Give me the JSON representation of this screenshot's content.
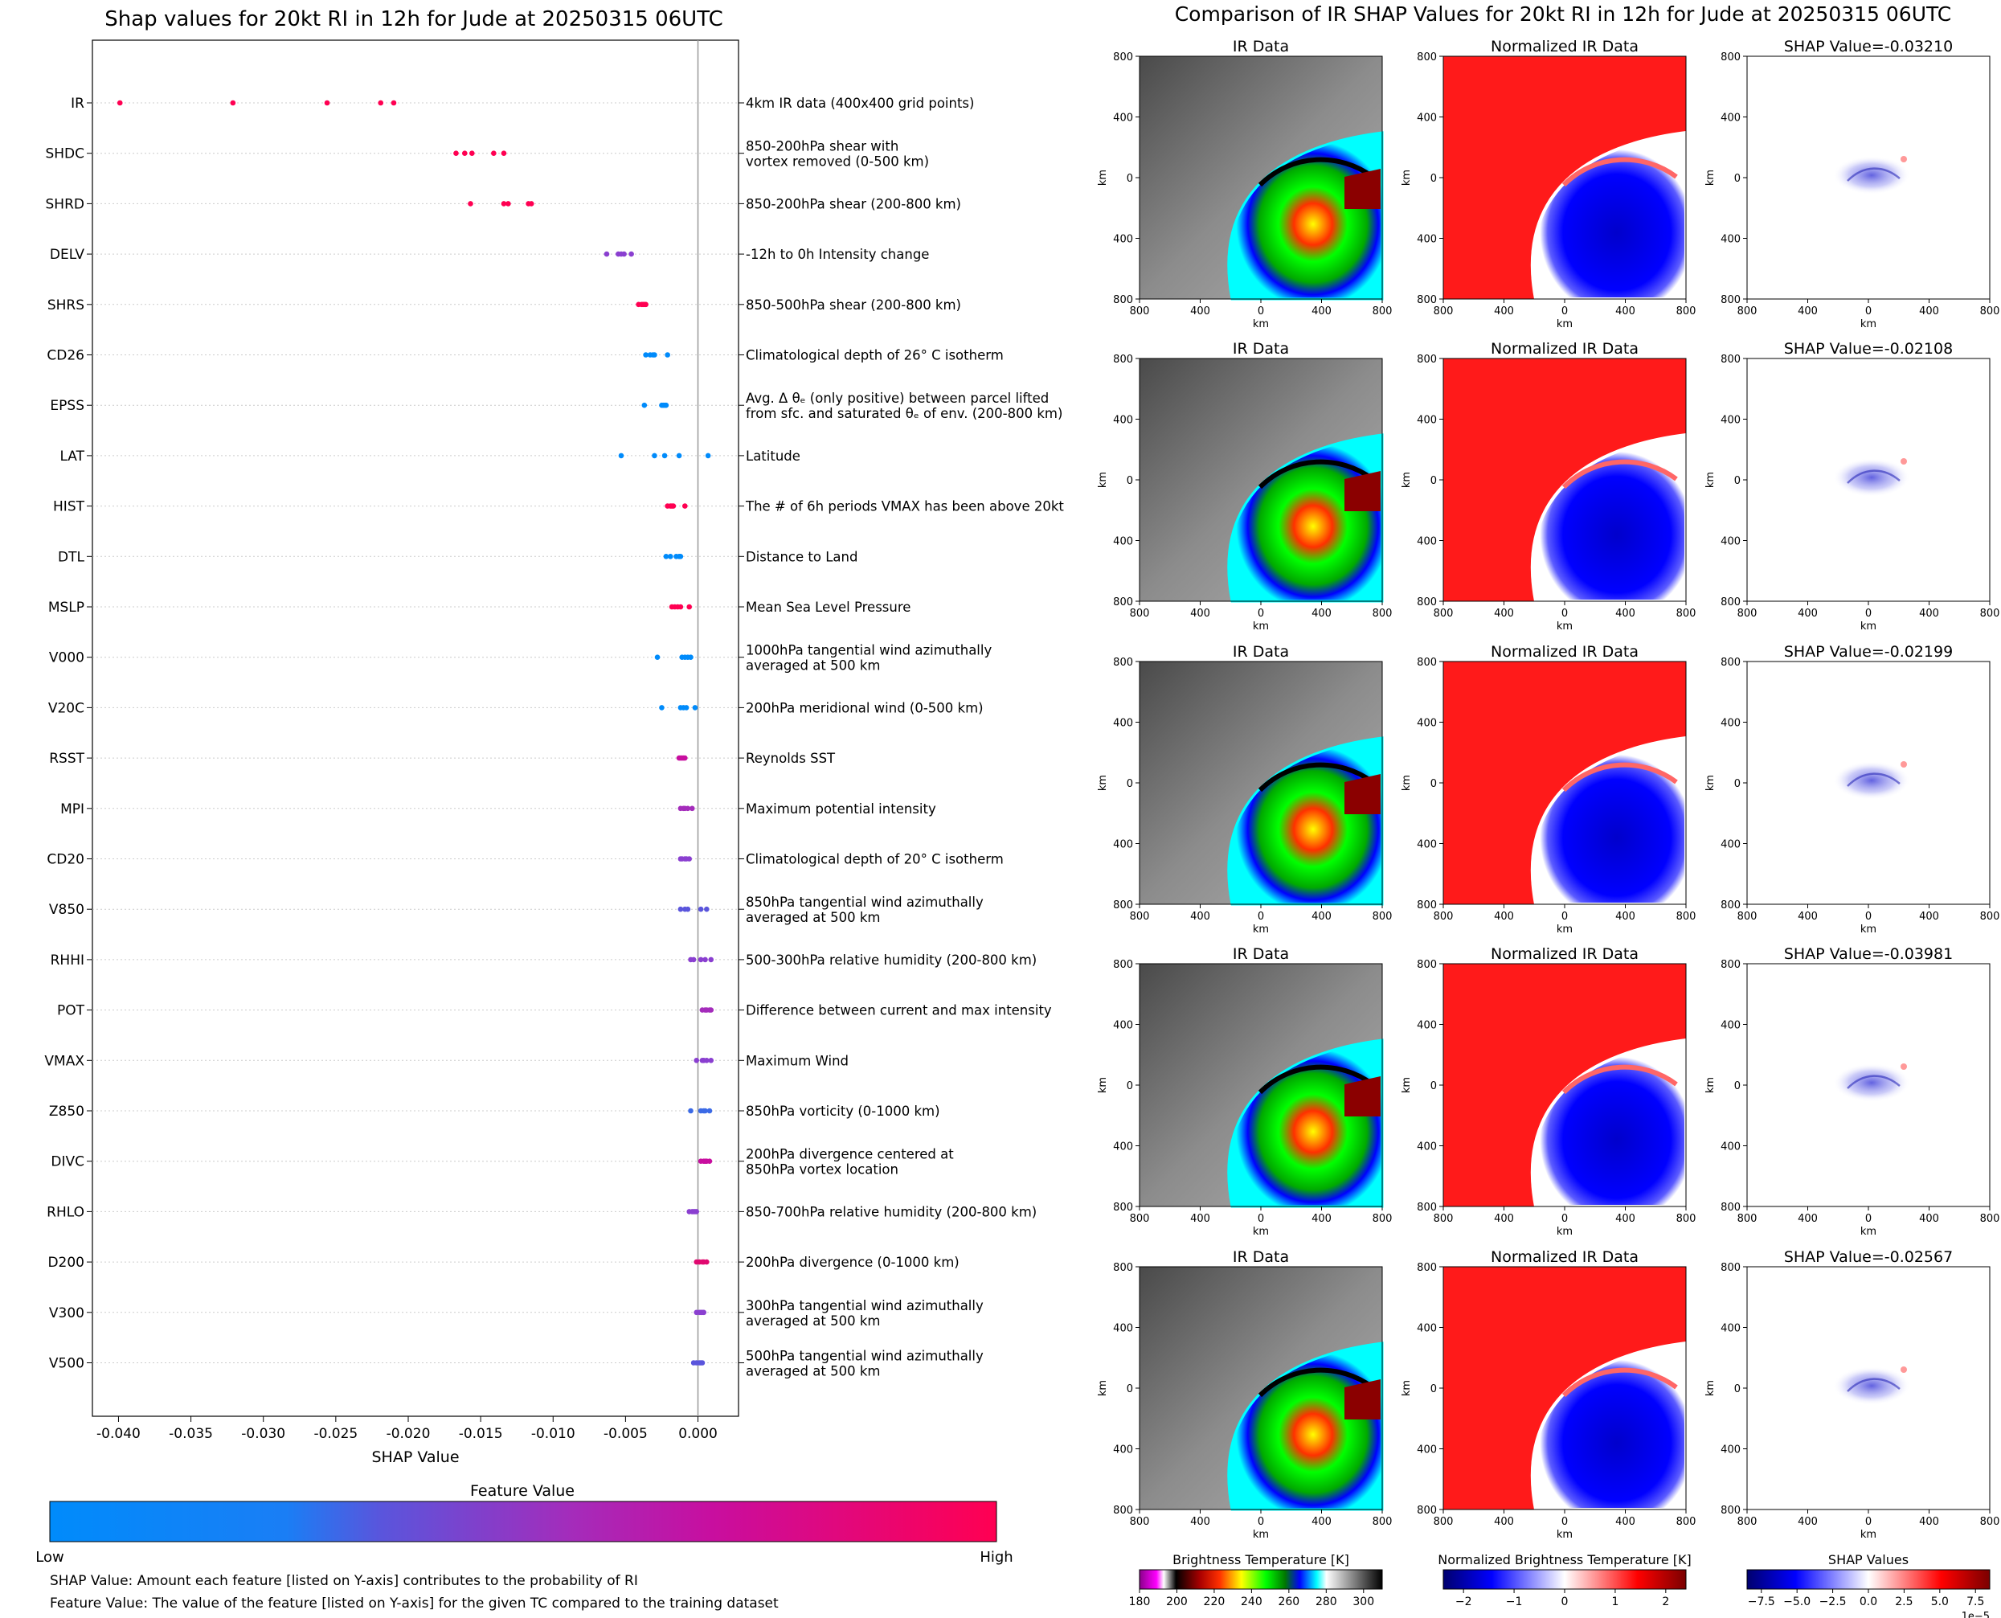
{
  "left_title": "Shap values for 20kt RI in 12h for Jude at 20250315 06UTC",
  "right_title": "Comparison of IR SHAP Values for 20kt RI in 12h for Jude at 20250315 06UTC",
  "colorbar": {
    "title": "Feature Value",
    "low_label": "Low",
    "high_label": "High",
    "colors": [
      "#008bfb",
      "#3b6ae6",
      "#8a3fd0",
      "#c80e9f",
      "#ff0052"
    ]
  },
  "footnotes": [
    "SHAP Value: Amount each feature [listed on Y-axis] contributes to the probability of RI",
    "Feature Value: The value of the feature [listed on Y-axis] for the given TC compared to the training dataset"
  ],
  "chart_data": [
    {
      "type": "scatter",
      "title": "Shap values for 20kt RI in 12h for Jude at 20250315 06UTC",
      "xlabel": "SHAP Value",
      "xlim": [
        -0.0418,
        0.0028
      ],
      "xticks": [
        -0.04,
        -0.035,
        -0.03,
        -0.025,
        -0.02,
        -0.015,
        -0.01,
        -0.005,
        0.0
      ],
      "xtick_labels": [
        "-0.040",
        "-0.035",
        "-0.030",
        "-0.025",
        "-0.020",
        "-0.015",
        "-0.010",
        "-0.005",
        "0.000"
      ],
      "features": [
        {
          "name": "IR",
          "desc": [
            "4km IR data (400x400 grid points)"
          ],
          "color": "#ff0052",
          "values": [
            -0.0399,
            -0.0321,
            -0.0256,
            -0.0219,
            -0.021
          ]
        },
        {
          "name": "SHDC",
          "desc": [
            "850-200hPa shear with",
            "vortex removed (0-500 km)"
          ],
          "color": "#ff0052",
          "values": [
            -0.0167,
            -0.0161,
            -0.0156,
            -0.0141,
            -0.0134
          ]
        },
        {
          "name": "SHRD",
          "desc": [
            "850-200hPa shear (200-800 km)"
          ],
          "color": "#ff0052",
          "values": [
            -0.0157,
            -0.0134,
            -0.0131,
            -0.0117,
            -0.0115
          ]
        },
        {
          "name": "DELV",
          "desc": [
            "-12h to 0h Intensity change"
          ],
          "color": "#8a3fd0",
          "values": [
            -0.0063,
            -0.0055,
            -0.0053,
            -0.0051,
            -0.0046
          ]
        },
        {
          "name": "SHRS",
          "desc": [
            "850-500hPa shear (200-800 km)"
          ],
          "color": "#ff0052",
          "values": [
            -0.0041,
            -0.0039,
            -0.0038,
            -0.0037,
            -0.0036
          ]
        },
        {
          "name": "CD26",
          "desc": [
            "Climatological depth of 26° C isotherm"
          ],
          "color": "#008bfb",
          "values": [
            -0.0036,
            -0.0033,
            -0.0031,
            -0.003,
            -0.0021
          ]
        },
        {
          "name": "EPSS",
          "desc": [
            "Avg. Δ θₑ (only positive) between parcel lifted",
            "from sfc. and saturated θₑ of env. (200-800 km)"
          ],
          "color": "#008bfb",
          "values": [
            -0.0037,
            -0.0025,
            -0.0024,
            -0.0023,
            -0.0022
          ]
        },
        {
          "name": "LAT",
          "desc": [
            "Latitude"
          ],
          "color": "#008bfb",
          "values": [
            -0.0053,
            -0.003,
            -0.0023,
            -0.0013,
            0.0007
          ]
        },
        {
          "name": "HIST",
          "desc": [
            "The # of 6h periods VMAX has been above 20kt"
          ],
          "color": "#ff0052",
          "values": [
            -0.0021,
            -0.0019,
            -0.0018,
            -0.0017,
            -0.0009
          ]
        },
        {
          "name": "DTL",
          "desc": [
            "Distance to Land"
          ],
          "color": "#008bfb",
          "values": [
            -0.0022,
            -0.0019,
            -0.0015,
            -0.0013,
            -0.0012
          ]
        },
        {
          "name": "MSLP",
          "desc": [
            "Mean Sea Level Pressure"
          ],
          "color": "#ff0052",
          "values": [
            -0.0018,
            -0.0016,
            -0.0014,
            -0.0012,
            -0.0006
          ]
        },
        {
          "name": "V000",
          "desc": [
            "1000hPa tangential wind azimuthally",
            "averaged at 500 km"
          ],
          "color": "#008bfb",
          "values": [
            -0.0028,
            -0.0011,
            -0.0009,
            -0.0007,
            -0.0005
          ]
        },
        {
          "name": "V20C",
          "desc": [
            "200hPa meridional wind (0-500 km)"
          ],
          "color": "#008bfb",
          "values": [
            -0.0025,
            -0.0012,
            -0.001,
            -0.0008,
            -0.0002
          ]
        },
        {
          "name": "RSST",
          "desc": [
            "Reynolds SST"
          ],
          "color": "#c80e9f",
          "values": [
            -0.0013,
            -0.0012,
            -0.0011,
            -0.001,
            -0.0009
          ]
        },
        {
          "name": "MPI",
          "desc": [
            "Maximum potential intensity"
          ],
          "color": "#a42cbb",
          "values": [
            -0.0012,
            -0.001,
            -0.0009,
            -0.0007,
            -0.0004
          ]
        },
        {
          "name": "CD20",
          "desc": [
            "Climatological depth of 20° C isotherm"
          ],
          "color": "#8a3fd0",
          "values": [
            -0.0012,
            -0.0011,
            -0.0009,
            -0.0008,
            -0.0006
          ]
        },
        {
          "name": "V850",
          "desc": [
            "850hPa tangential wind azimuthally",
            "averaged at 500 km"
          ],
          "color": "#5a55dc",
          "values": [
            -0.0012,
            -0.0009,
            -0.0007,
            0.0002,
            0.0006
          ]
        },
        {
          "name": "RHHI",
          "desc": [
            "500-300hPa relative humidity (200-800 km)"
          ],
          "color": "#8a3fd0",
          "values": [
            -0.0005,
            -0.0003,
            0.0002,
            0.0005,
            0.0009
          ]
        },
        {
          "name": "POT",
          "desc": [
            "Difference between current and max intensity"
          ],
          "color": "#a42cbb",
          "values": [
            0.0003,
            0.0005,
            0.0006,
            0.0008,
            0.0009
          ]
        },
        {
          "name": "VMAX",
          "desc": [
            "Maximum Wind"
          ],
          "color": "#8a3fd0",
          "values": [
            -0.0001,
            0.0003,
            0.0004,
            0.0006,
            0.0009
          ]
        },
        {
          "name": "Z850",
          "desc": [
            "850hPa vorticity (0-1000 km)"
          ],
          "color": "#3b6ae6",
          "values": [
            -0.0005,
            0.0002,
            0.0004,
            0.0005,
            0.0008
          ]
        },
        {
          "name": "DIVC",
          "desc": [
            "200hPa divergence centered at",
            "850hPa vortex location"
          ],
          "color": "#c80e9f",
          "values": [
            0.0002,
            0.0004,
            0.0005,
            0.0006,
            0.0008
          ]
        },
        {
          "name": "RHLO",
          "desc": [
            "850-700hPa relative humidity (200-800 km)"
          ],
          "color": "#8a3fd0",
          "values": [
            -0.0006,
            -0.0004,
            -0.0003,
            -0.0002,
            -0.0001
          ]
        },
        {
          "name": "D200",
          "desc": [
            "200hPa divergence (0-1000 km)"
          ],
          "color": "#e0086f",
          "values": [
            -0.0001,
            0.0001,
            0.0003,
            0.0004,
            0.0006
          ]
        },
        {
          "name": "V300",
          "desc": [
            "300hPa tangential wind azimuthally",
            "averaged at 500 km"
          ],
          "color": "#8a3fd0",
          "values": [
            -0.0001,
            0.0001,
            0.0002,
            0.0003,
            0.0004
          ]
        },
        {
          "name": "V500",
          "desc": [
            "500hPa tangential wind azimuthally",
            "averaged at 500 km"
          ],
          "color": "#5a55dc",
          "values": [
            -0.0003,
            -0.0001,
            0.0001,
            0.0002,
            0.0003
          ]
        }
      ]
    },
    {
      "type": "heatmap",
      "title": "Comparison of IR SHAP Values for 20kt RI in 12h for Jude at 20250315 06UTC",
      "panel_titles": [
        "IR Data",
        "Normalized IR Data"
      ],
      "shap_values": [
        "-0.03210",
        "-0.02108",
        "-0.02199",
        "-0.03981",
        "-0.02567"
      ],
      "shap_title_prefix": "SHAP Value=",
      "axis_label": "km",
      "tick_labels": [
        "800",
        "400",
        "0",
        "400",
        "800"
      ],
      "colorbars": [
        {
          "title": "Brightness Temperature [K]",
          "ticks": [
            "180",
            "200",
            "220",
            "240",
            "260",
            "280",
            "300"
          ],
          "range": [
            180,
            310
          ]
        },
        {
          "title": "Normalized Brightness Temperature [K]",
          "ticks": [
            "−2",
            "−1",
            "0",
            "1",
            "2"
          ],
          "range": [
            -2.4,
            2.4
          ]
        },
        {
          "title": "SHAP Values",
          "ticks": [
            "−7.5",
            "−5.0",
            "−2.5",
            "0.0",
            "2.5",
            "5.0",
            "7.5"
          ],
          "range": [
            -8.5,
            8.5
          ],
          "exponent": "1e−5"
        }
      ]
    }
  ]
}
